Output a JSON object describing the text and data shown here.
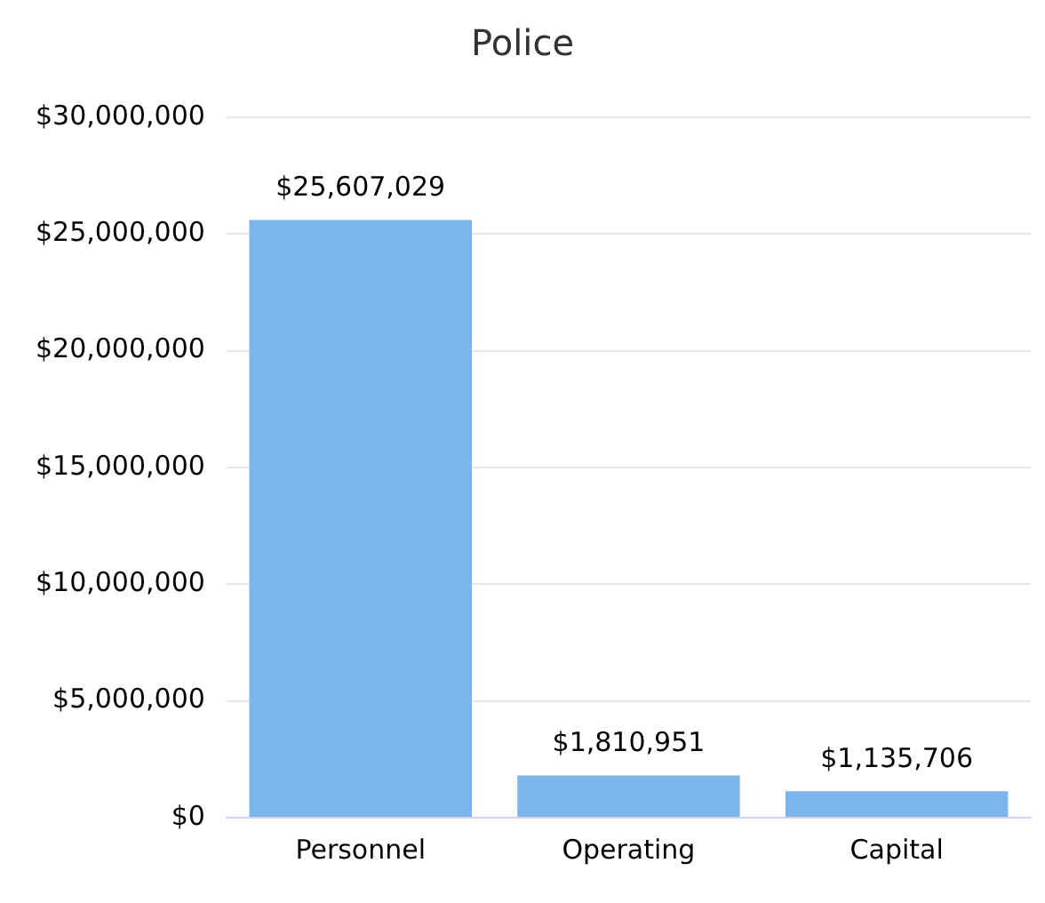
{
  "chart_data": {
    "type": "bar",
    "title": "Police",
    "categories": [
      "Personnel",
      "Operating",
      "Capital"
    ],
    "values": [
      25607029,
      1810951,
      1135706
    ],
    "value_labels": [
      "$25,607,029",
      "$1,810,951",
      "$1,135,706"
    ],
    "color": "#7cb5ec",
    "ylim": [
      0,
      30000000
    ],
    "yticks": [
      {
        "value": 0,
        "label": "$0"
      },
      {
        "value": 5000000,
        "label": "$5,000,000"
      },
      {
        "value": 10000000,
        "label": "$10,000,000"
      },
      {
        "value": 15000000,
        "label": "$15,000,000"
      },
      {
        "value": 20000000,
        "label": "$20,000,000"
      },
      {
        "value": 25000000,
        "label": "$25,000,000"
      },
      {
        "value": 30000000,
        "label": "$30,000,000"
      }
    ],
    "grid": "y",
    "legend": false
  }
}
